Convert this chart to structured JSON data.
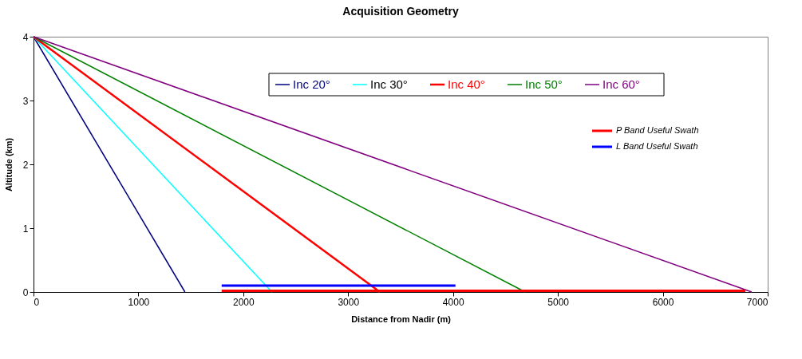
{
  "chart_data": {
    "type": "line",
    "title": "Acquisition Geometry",
    "xlabel": "Distance from Nadir (m)",
    "ylabel": "Altitude (km)",
    "xlim": [
      0,
      7000
    ],
    "xticks": [
      0,
      1000,
      2000,
      3000,
      4000,
      5000,
      6000,
      7000
    ],
    "ylim": [
      0,
      4
    ],
    "yticks": [
      0,
      1,
      2,
      3,
      4
    ],
    "grid": false,
    "legend": "top",
    "marker": "none",
    "line_style": "solid",
    "series": [
      {
        "name": "Inc 20°",
        "color": "#000080",
        "x": [
          0,
          1444
        ],
        "values": [
          4,
          0
        ]
      },
      {
        "name": "Inc 30°",
        "color": "#00ffff",
        "x": [
          0,
          2273
        ],
        "values": [
          4,
          0
        ]
      },
      {
        "name": "Inc 40°",
        "color": "#ff0000",
        "x": [
          0,
          3303
        ],
        "values": [
          4,
          0
        ]
      },
      {
        "name": "Inc 50°",
        "color": "#008000",
        "x": [
          0,
          4688
        ],
        "values": [
          4,
          0
        ]
      },
      {
        "name": "Inc 60°",
        "color": "#800080",
        "x": [
          0,
          6847
        ],
        "values": [
          4,
          0
        ]
      },
      {
        "name": "P Band Useful Swath",
        "color": "#ff0000",
        "x": [
          1794,
          6788
        ],
        "values": [
          0.02,
          0.02
        ]
      },
      {
        "name": "L Band Useful Swath",
        "color": "#0000ff",
        "x": [
          1794,
          4023
        ],
        "values": [
          0.1,
          0.1
        ]
      }
    ]
  }
}
